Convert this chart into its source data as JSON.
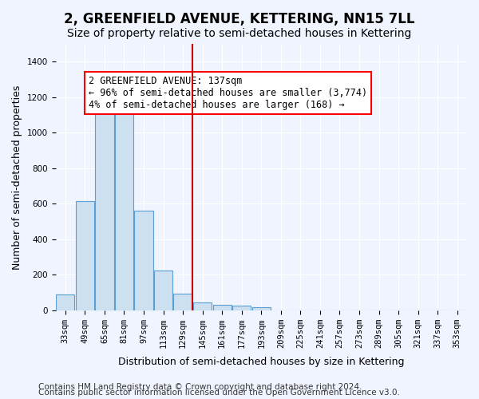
{
  "title": "2, GREENFIELD AVENUE, KETTERING, NN15 7LL",
  "subtitle": "Size of property relative to semi-detached houses in Kettering",
  "xlabel": "Distribution of semi-detached houses by size in Kettering",
  "ylabel": "Number of semi-detached properties",
  "categories": [
    "33sqm",
    "49sqm",
    "65sqm",
    "81sqm",
    "97sqm",
    "113sqm",
    "129sqm",
    "145sqm",
    "161sqm",
    "177sqm",
    "193sqm",
    "209sqm",
    "225sqm",
    "241sqm",
    "257sqm",
    "273sqm",
    "289sqm",
    "305sqm",
    "321sqm",
    "337sqm",
    "353sqm"
  ],
  "values": [
    90,
    615,
    1130,
    1130,
    560,
    225,
    95,
    45,
    30,
    25,
    15,
    0,
    0,
    0,
    0,
    0,
    0,
    0,
    0,
    0,
    0
  ],
  "bar_color": "#cce0f0",
  "bar_edge_color": "#5a9fd4",
  "property_line_x": 7,
  "property_line_color": "#cc0000",
  "annotation_text": "2 GREENFIELD AVENUE: 137sqm\n← 96% of semi-detached houses are smaller (3,774)\n4% of semi-detached houses are larger (168) →",
  "ylim": [
    0,
    1500
  ],
  "yticks": [
    0,
    200,
    400,
    600,
    800,
    1000,
    1200,
    1400
  ],
  "footer1": "Contains HM Land Registry data © Crown copyright and database right 2024.",
  "footer2": "Contains public sector information licensed under the Open Government Licence v3.0.",
  "bg_color": "#f0f4ff",
  "grid_color": "#ffffff",
  "title_fontsize": 12,
  "subtitle_fontsize": 10,
  "xlabel_fontsize": 9,
  "ylabel_fontsize": 9,
  "tick_fontsize": 7.5,
  "annotation_fontsize": 8.5,
  "footer_fontsize": 7.5
}
